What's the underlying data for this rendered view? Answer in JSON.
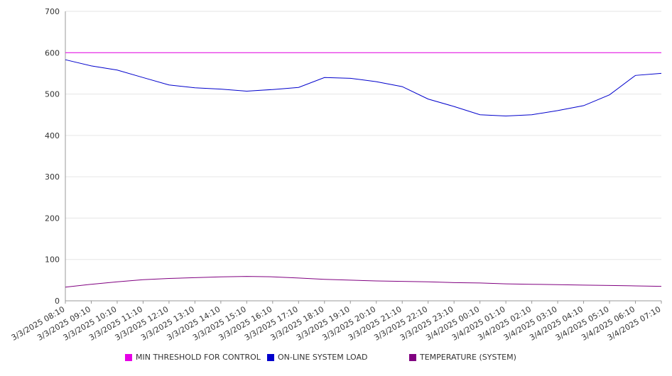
{
  "chart_data": {
    "type": "line",
    "categories": [
      "3/3/2025 08:10",
      "3/3/2025 09:10",
      "3/3/2025 10:10",
      "3/3/2025 11:10",
      "3/3/2025 12:10",
      "3/3/2025 13:10",
      "3/3/2025 14:10",
      "3/3/2025 15:10",
      "3/3/2025 16:10",
      "3/3/2025 17:10",
      "3/3/2025 18:10",
      "3/3/2025 19:10",
      "3/3/2025 20:10",
      "3/3/2025 21:10",
      "3/3/2025 22:10",
      "3/3/2025 23:10",
      "3/4/2025 00:10",
      "3/4/2025 01:10",
      "3/4/2025 02:10",
      "3/4/2025 03:10",
      "3/4/2025 04:10",
      "3/4/2025 05:10",
      "3/4/2025 06:10",
      "3/4/2025 07:10"
    ],
    "ylim": [
      0,
      700
    ],
    "yticks": [
      0,
      100,
      200,
      300,
      400,
      500,
      600,
      700
    ],
    "grid": "horizontal",
    "legend_position": "bottom",
    "series": [
      {
        "name": "MIN THRESHOLD FOR CONTROL",
        "color": "#e600e6",
        "values": [
          600,
          600,
          600,
          600,
          600,
          600,
          600,
          600,
          600,
          600,
          600,
          600,
          600,
          600,
          600,
          600,
          600,
          600,
          600,
          600,
          600,
          600,
          600,
          600
        ]
      },
      {
        "name": "ON-LINE SYSTEM LOAD",
        "color": "#0000cc",
        "values": [
          583,
          568,
          558,
          540,
          522,
          515,
          512,
          507,
          511,
          516,
          540,
          538,
          530,
          518,
          488,
          470,
          450,
          447,
          450,
          460,
          472,
          498,
          545,
          550
        ]
      },
      {
        "name": "TEMPERATURE (SYSTEM)",
        "color": "#800080",
        "values": [
          33,
          40,
          46,
          51,
          54,
          56,
          58,
          59,
          58,
          55,
          52,
          50,
          48,
          47,
          46,
          44,
          43,
          41,
          40,
          39,
          38,
          37,
          36,
          35
        ]
      }
    ]
  }
}
